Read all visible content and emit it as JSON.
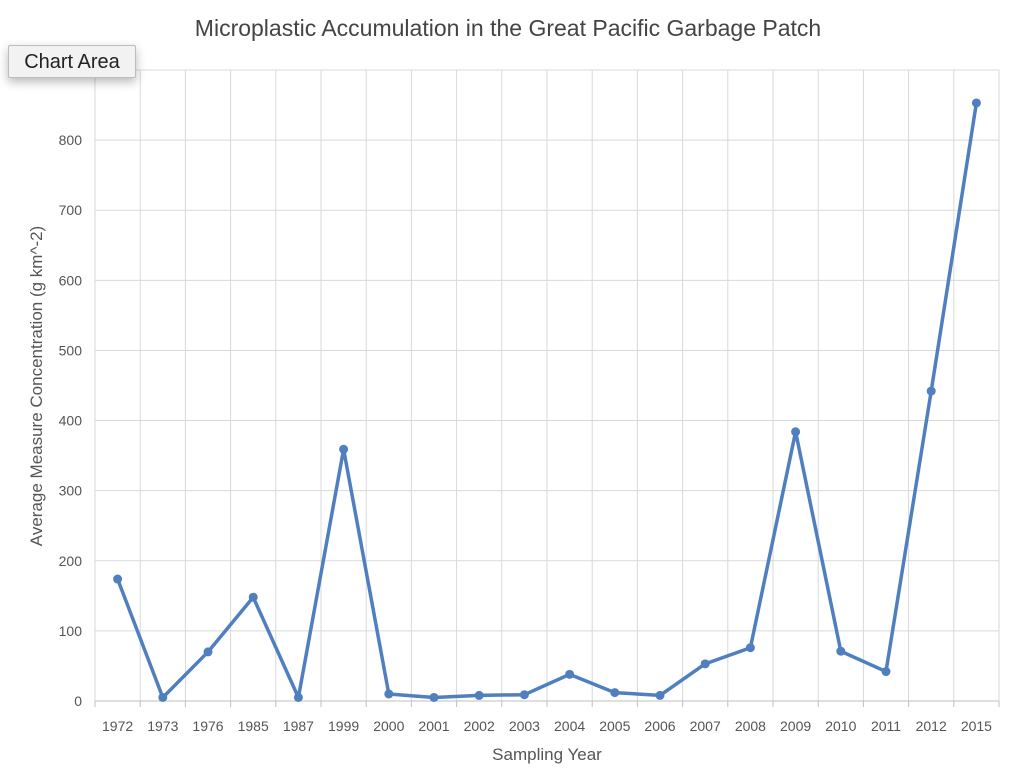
{
  "tooltip": {
    "label": "Chart Area"
  },
  "chart_data": {
    "type": "line",
    "title": "Microplastic Accumulation in the Great Pacific Garbage Patch",
    "xlabel": "Sampling Year",
    "ylabel": "Average Measure Concentration (g km^-2)",
    "categories": [
      "1972",
      "1973",
      "1976",
      "1985",
      "1987",
      "1999",
      "2000",
      "2001",
      "2002",
      "2003",
      "2004",
      "2005",
      "2006",
      "2007",
      "2008",
      "2009",
      "2010",
      "2011",
      "2012",
      "2015"
    ],
    "series": [
      {
        "values": [
          174,
          5,
          70,
          148,
          5,
          359,
          10,
          5,
          8,
          9,
          38,
          12,
          8,
          53,
          76,
          384,
          71,
          42,
          442,
          853
        ]
      }
    ],
    "ylim": [
      0,
      900
    ],
    "yticks": [
      0,
      100,
      200,
      300,
      400,
      500,
      600,
      700,
      800
    ],
    "grid": true,
    "color": "#4f7fbf"
  }
}
